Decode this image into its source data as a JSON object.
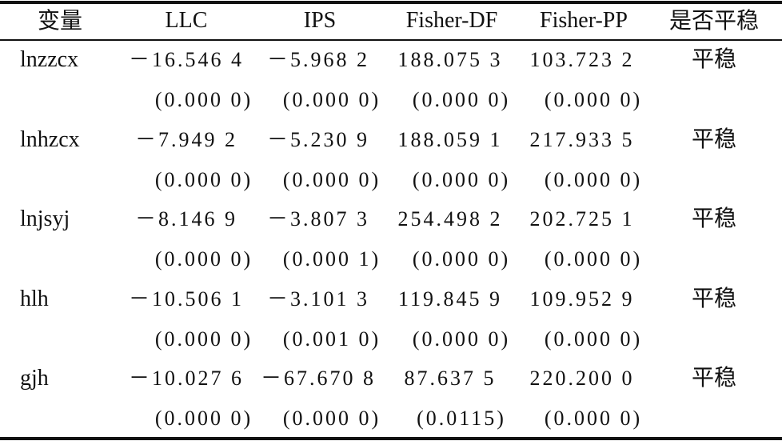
{
  "table": {
    "header": [
      "变量",
      "LLC",
      "IPS",
      "Fisher-DF",
      "Fisher-PP",
      "是否平稳"
    ],
    "rows": [
      {
        "variable": "lnzzcx",
        "stats": [
          "－16.546 4",
          "－5.968 2",
          "188.075 3",
          "103.723 2"
        ],
        "p_values": [
          "(0.000 0)",
          "(0.000 0)",
          "(0.000 0)",
          "(0.000 0)"
        ],
        "result": "平稳"
      },
      {
        "variable": "lnhzcx",
        "stats": [
          "－7.949 2",
          "－5.230 9",
          "188.059 1",
          "217.933 5"
        ],
        "p_values": [
          "(0.000 0)",
          "(0.000 0)",
          "(0.000 0)",
          "(0.000 0)"
        ],
        "result": "平稳"
      },
      {
        "variable": "lnjsyj",
        "stats": [
          "－8.146 9",
          "－3.807 3",
          "254.498 2",
          "202.725 1"
        ],
        "p_values": [
          "(0.000 0)",
          "(0.000 1)",
          "(0.000 0)",
          "(0.000 0)"
        ],
        "result": "平稳"
      },
      {
        "variable": "hlh",
        "stats": [
          "－10.506 1",
          "－3.101 3",
          "119.845 9",
          "109.952 9"
        ],
        "p_values": [
          "(0.000 0)",
          "(0.001 0)",
          "(0.000 0)",
          "(0.000 0)"
        ],
        "result": "平稳"
      },
      {
        "variable": "gjh",
        "stats": [
          "－10.027 6",
          "－67.670 8",
          "87.637 5",
          "220.200 0"
        ],
        "p_values": [
          "(0.000 0)",
          "(0.000 0)",
          "(0.0115)",
          "(0.000 0)"
        ],
        "result": "平稳"
      }
    ]
  }
}
